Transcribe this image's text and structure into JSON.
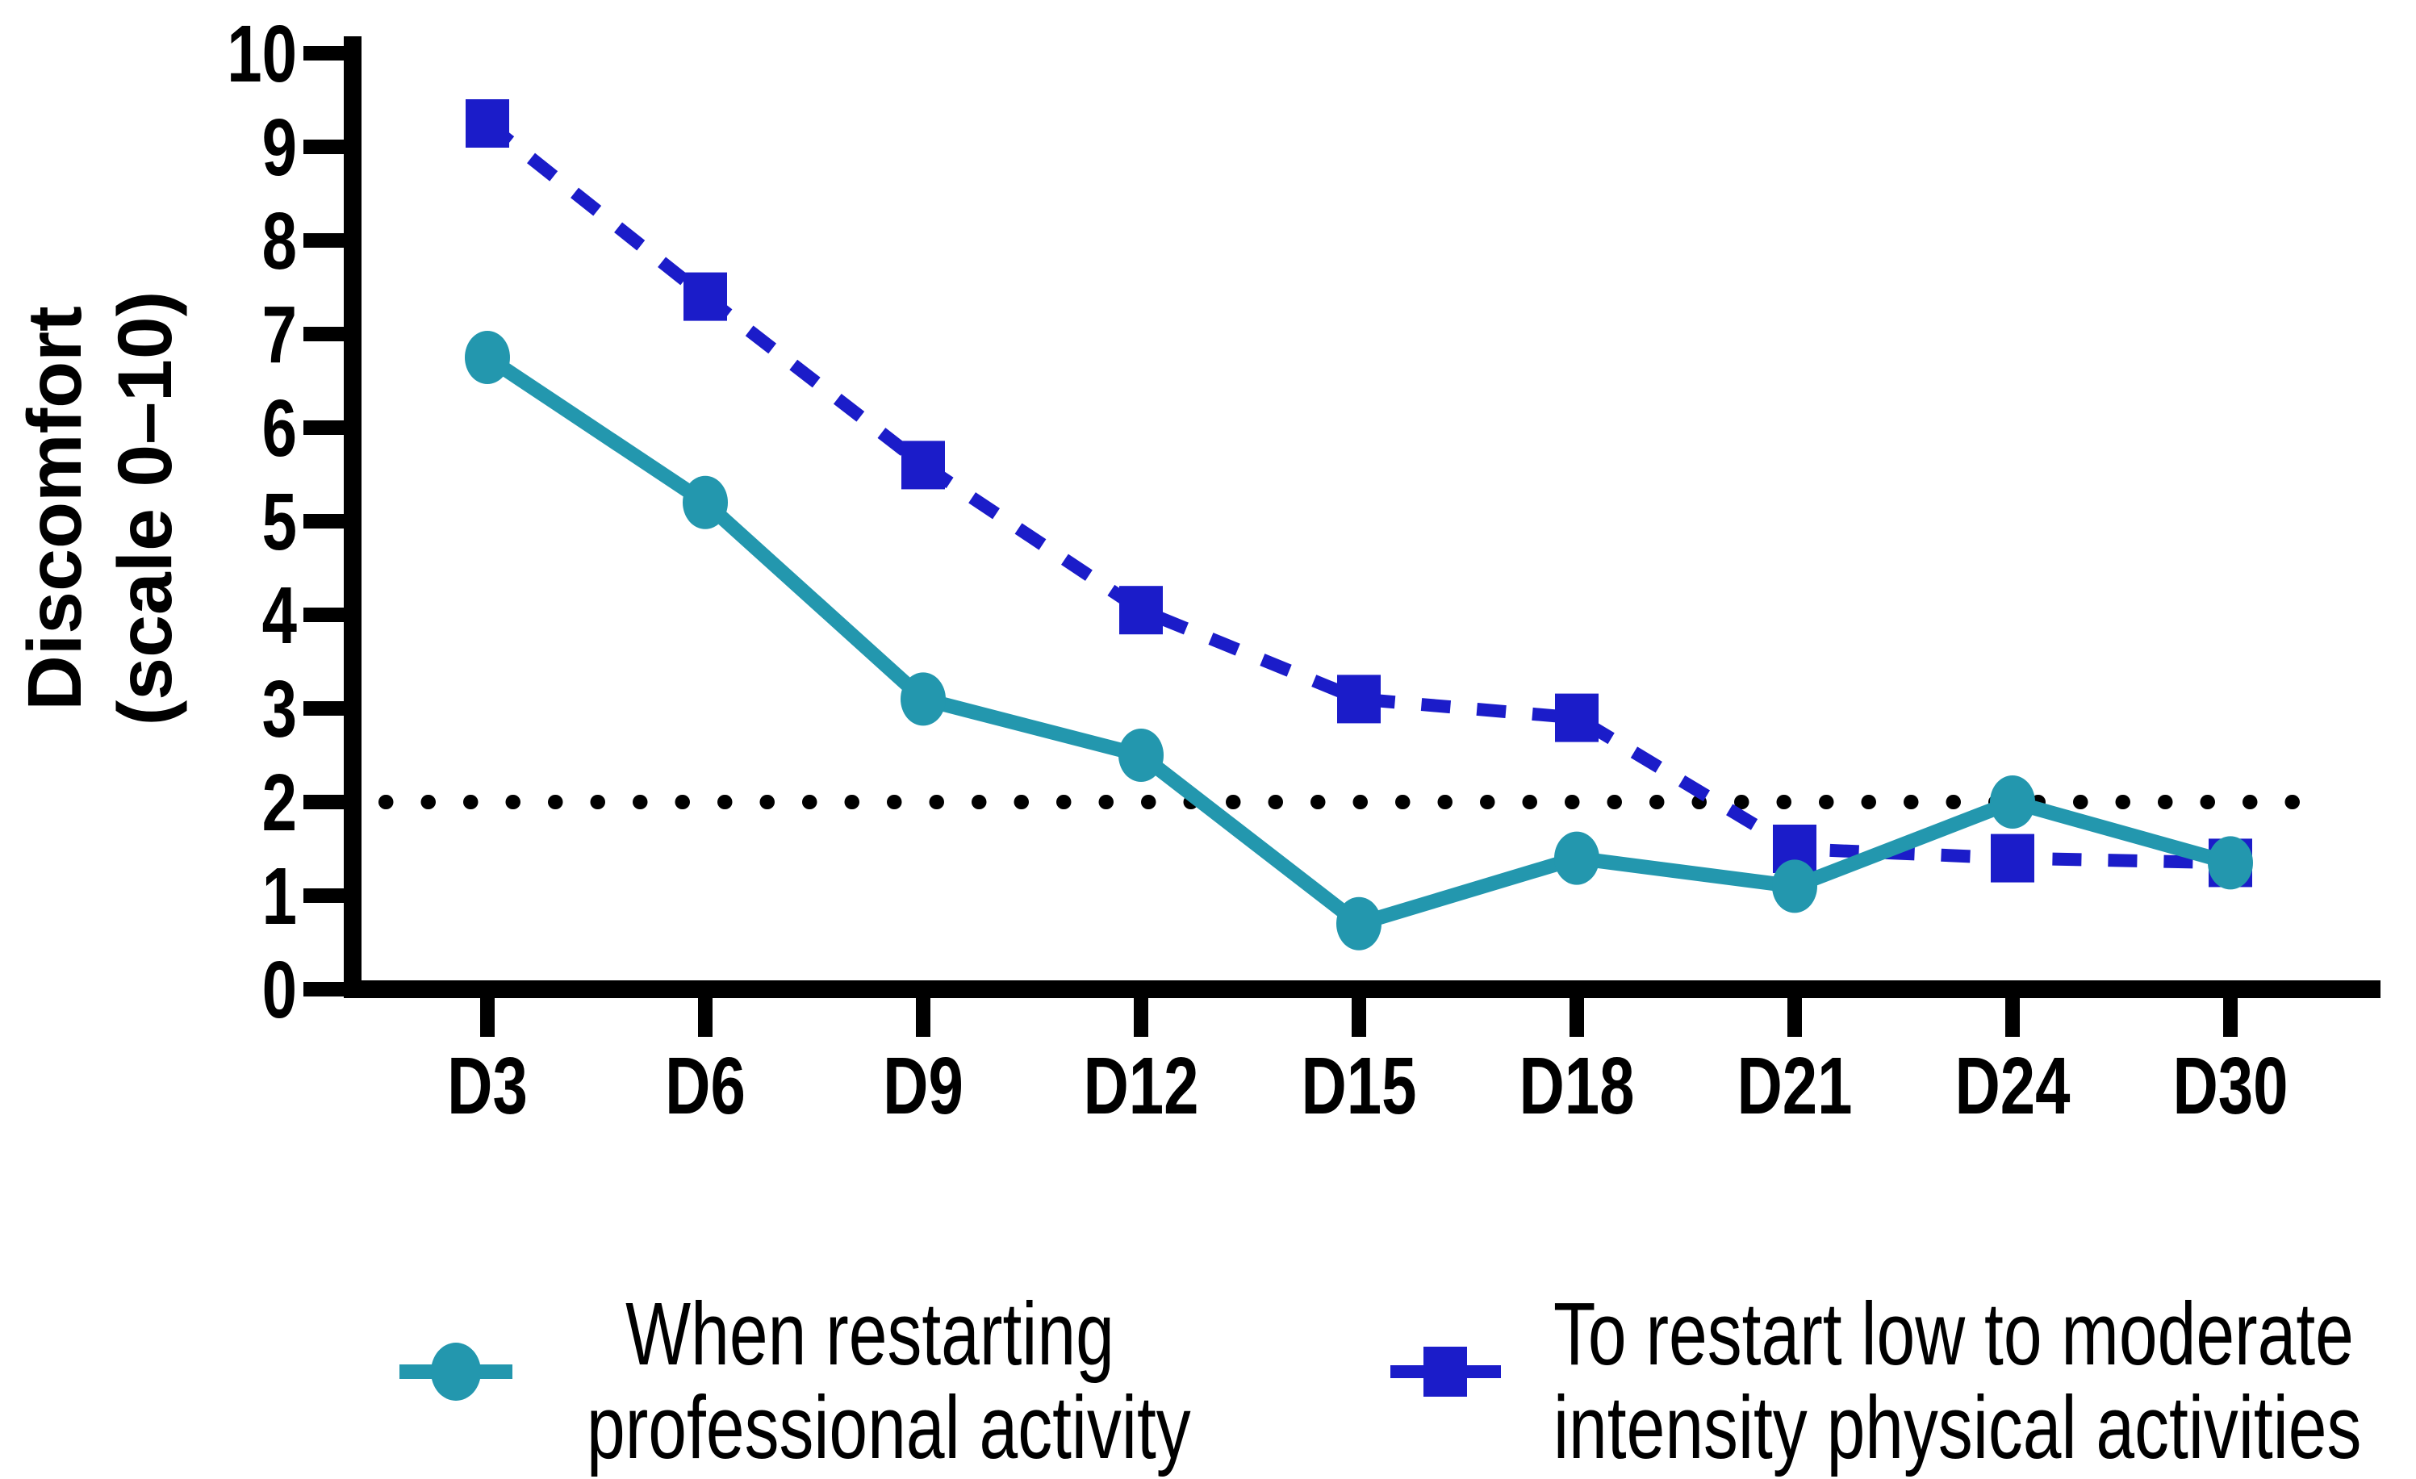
{
  "chart_data": {
    "type": "line",
    "title": "",
    "categories": [
      "D3",
      "D6",
      "D9",
      "D12",
      "D15",
      "D18",
      "D21",
      "D24",
      "D30"
    ],
    "x_axis": {
      "label": ""
    },
    "y_axis": {
      "title_lines": [
        "Discomfort",
        "(scale 0–10)"
      ],
      "ticks": [
        0,
        1,
        2,
        3,
        4,
        5,
        6,
        7,
        8,
        9,
        10
      ],
      "range": [
        0,
        10
      ]
    },
    "series": [
      {
        "id": "professional",
        "name": "When restarting professional activity",
        "legend_lines": [
          "When restarting",
          "professional activity"
        ],
        "color": "#2397ae",
        "marker": "circle",
        "line": "solid",
        "values": [
          6.75,
          5.2,
          3.1,
          2.5,
          0.7,
          1.4,
          1.1,
          2.0,
          1.35
        ]
      },
      {
        "id": "physical",
        "name": "To restart low to moderate intensity physical activities",
        "legend_lines": [
          "To restart low to moderate",
          "intensity physical activities"
        ],
        "color": "#1b1cc9",
        "marker": "square",
        "line": "dashed",
        "values": [
          9.25,
          7.4,
          5.6,
          4.05,
          3.1,
          2.9,
          1.5,
          1.4,
          1.35
        ]
      }
    ],
    "reference_line": {
      "y": 2,
      "style": "dotted",
      "color": "#000000"
    },
    "grid": false,
    "legend_position": "bottom",
    "ylim": [
      0,
      10
    ]
  },
  "colors": {
    "background": "#ffffff",
    "axis": "#000000"
  }
}
